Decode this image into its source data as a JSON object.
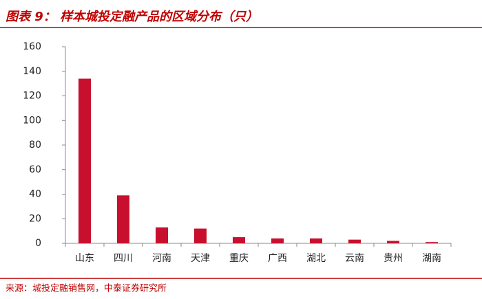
{
  "chart_data": {
    "type": "bar",
    "title": "图表 9： 样本城投定融产品的区域分布（只）",
    "source": "来源：城投定融销售网，中泰证券研究所",
    "categories": [
      "山东",
      "四川",
      "河南",
      "天津",
      "重庆",
      "广西",
      "湖北",
      "云南",
      "贵州",
      "湖南"
    ],
    "values": [
      134,
      39,
      13,
      12,
      5,
      4,
      4,
      3,
      2,
      1
    ],
    "color": "#c8102e",
    "ylim": [
      0,
      160
    ],
    "yticks": [
      0,
      20,
      40,
      60,
      80,
      100,
      120,
      140,
      160
    ],
    "grid": false
  }
}
